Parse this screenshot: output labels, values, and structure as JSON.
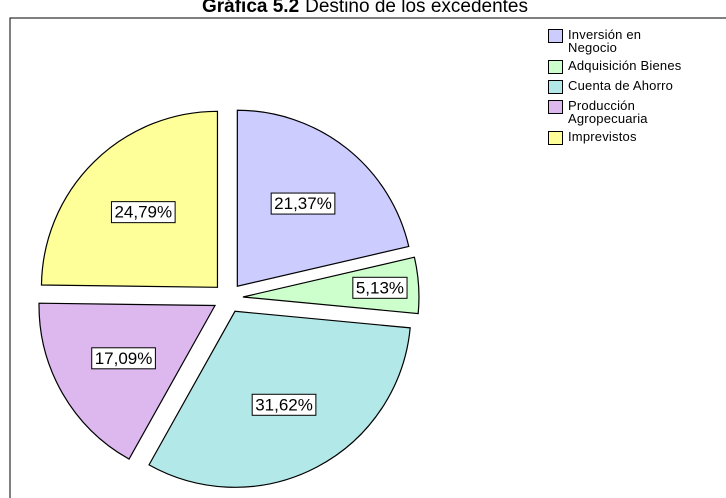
{
  "chart_data": {
    "type": "pie",
    "title": "Gráfica 5.2",
    "subtitle": "Destino de los excedentes",
    "categories": [
      "Inversión en Negocio",
      "Adquisición Bienes",
      "Cuenta de Ahorro",
      "Producción Agropecuaria",
      "Imprevistos"
    ],
    "values": [
      21.37,
      5.13,
      31.62,
      17.09,
      24.79
    ],
    "value_labels": [
      "21,37%",
      "5,13%",
      "31,62%",
      "17,09%",
      "24,79%"
    ],
    "colors": [
      "#ccccff",
      "#ccffcc",
      "#b3e8e8",
      "#ddb8ee",
      "#ffff99"
    ],
    "legend": "right"
  }
}
